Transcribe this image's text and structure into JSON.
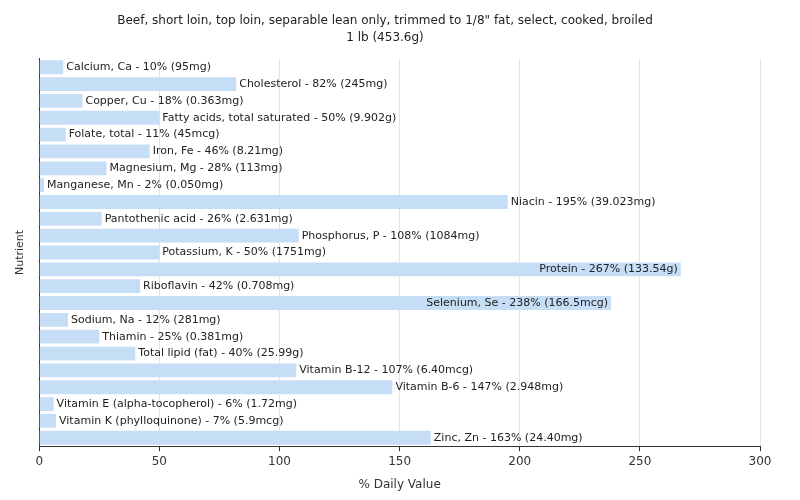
{
  "chart_data": {
    "type": "bar",
    "orientation": "horizontal",
    "title": "Beef, short loin, top loin, separable lean only, trimmed to 1/8\" fat, select, cooked, broiled",
    "subtitle": "1 lb (453.6g)",
    "x_label": "% Daily Value",
    "y_label": "Nutrient",
    "categories": [
      "Calcium, Ca",
      "Cholesterol",
      "Copper, Cu",
      "Fatty acids, total saturated",
      "Folate, total",
      "Iron, Fe",
      "Magnesium, Mg",
      "Manganese, Mn",
      "Niacin",
      "Pantothenic acid",
      "Phosphorus, P",
      "Potassium, K",
      "Protein",
      "Riboflavin",
      "Selenium, Se",
      "Sodium, Na",
      "Thiamin",
      "Total lipid (fat)",
      "Vitamin B-12",
      "Vitamin B-6",
      "Vitamin E (alpha-tocopherol)",
      "Vitamin K (phylloquinone)",
      "Zinc, Zn"
    ],
    "values": [
      10,
      82,
      18,
      50,
      11,
      46,
      28,
      2,
      195,
      26,
      108,
      50,
      267,
      42,
      238,
      12,
      25,
      40,
      107,
      147,
      6,
      7,
      163
    ],
    "value_labels": [
      "Calcium, Ca - 10% (95mg)",
      "Cholesterol - 82% (245mg)",
      "Copper, Cu - 18% (0.363mg)",
      "Fatty acids, total saturated - 50% (9.902g)",
      "Folate, total - 11% (45mcg)",
      "Iron, Fe - 46% (8.21mg)",
      "Magnesium, Mg - 28% (113mg)",
      "Manganese, Mn - 2% (0.050mg)",
      "Niacin - 195% (39.023mg)",
      "Pantothenic acid - 26% (2.631mg)",
      "Phosphorus, P - 108% (1084mg)",
      "Potassium, K - 50% (1751mg)",
      "Protein - 267% (133.54g)",
      "Riboflavin - 42% (0.708mg)",
      "Selenium, Se - 238% (166.5mcg)",
      "Sodium, Na - 12% (281mg)",
      "Thiamin - 25% (0.381mg)",
      "Total lipid (fat) - 40% (25.99g)",
      "Vitamin B-12 - 107% (6.40mcg)",
      "Vitamin B-6 - 147% (2.948mg)",
      "Vitamin E (alpha-tocopherol) - 6% (1.72mg)",
      "Vitamin K (phylloquinone) - 7% (5.9mcg)",
      "Zinc, Zn - 163% (24.40mg)"
    ],
    "color": "#c6ddf6",
    "xlim": [
      0,
      300
    ],
    "xticks": [
      0,
      50,
      100,
      150,
      200,
      250,
      300
    ],
    "grid": true,
    "data_labels": true,
    "tick_labels": "x"
  }
}
